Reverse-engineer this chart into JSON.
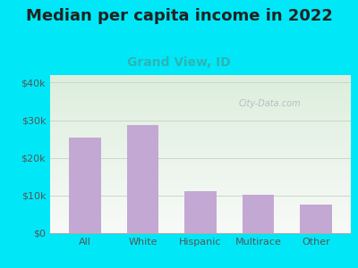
{
  "title": "Median per capita income in 2022",
  "subtitle": "Grand View, ID",
  "categories": [
    "All",
    "White",
    "Hispanic",
    "Multirace",
    "Other"
  ],
  "values": [
    25500,
    28800,
    11200,
    10300,
    7500
  ],
  "bar_color": "#c4a8d4",
  "title_fontsize": 13,
  "subtitle_fontsize": 10,
  "subtitle_color": "#2bb5b5",
  "title_color": "#222222",
  "background_outer": "#00e8f8",
  "background_inner_top_left": "#ddeedd",
  "background_inner_bottom": "#f8faf8",
  "ylim": [
    0,
    42000
  ],
  "yticks": [
    0,
    10000,
    20000,
    30000,
    40000
  ],
  "ytick_labels": [
    "$0",
    "$10k",
    "$20k",
    "$30k",
    "$40k"
  ],
  "watermark": "City-Data.com",
  "watermark_color": "#aabcbc",
  "grid_color": "#c8d8c8",
  "xlabel_color": "#555555",
  "tick_color": "#555555"
}
